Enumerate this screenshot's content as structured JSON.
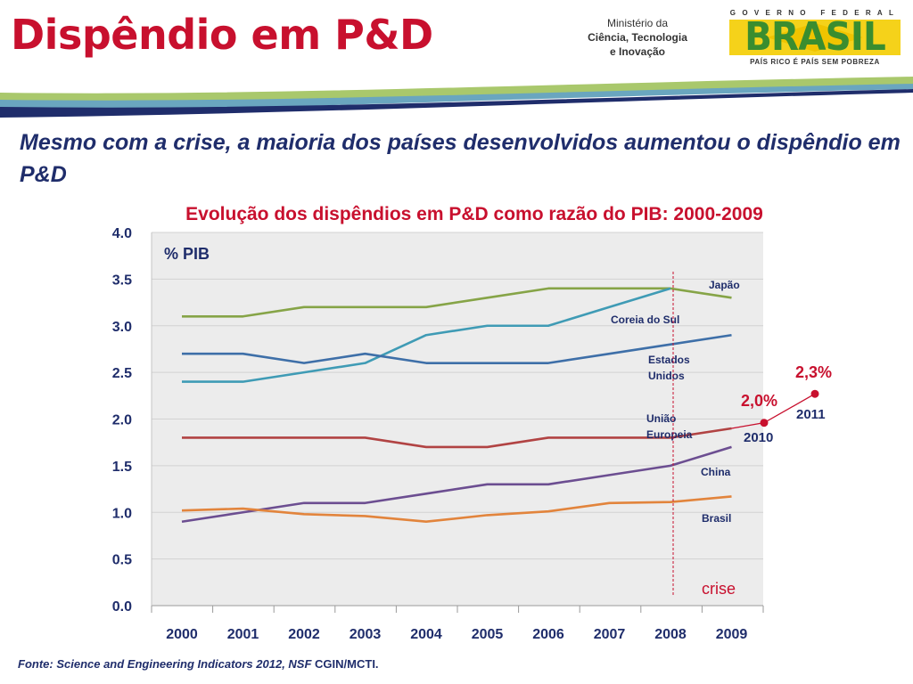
{
  "header": {
    "title": "Dispêndio em P&D",
    "ministry": [
      "Ministério da",
      "Ciência, Tecnologia",
      "e Inovação"
    ],
    "gov_top": "GOVERNO FEDERAL",
    "gov_word": "BRASIL",
    "gov_bottom": "PAÍS RICO É PAÍS SEM POBREZA"
  },
  "subtitle": "Mesmo com a crise, a maioria dos países desenvolvidos aumentou o dispêndio em P&D",
  "chart_data": {
    "type": "line",
    "title": "Evolução dos dispêndios em P&D como razão do PIB: 2000-2009",
    "ylabel": "% PIB",
    "xlabel": "",
    "x": [
      "2000",
      "2001",
      "2002",
      "2003",
      "2004",
      "2005",
      "2006",
      "2007",
      "2008",
      "2009"
    ],
    "ylim": [
      0,
      4
    ],
    "yticks": [
      "0.0",
      "0.5",
      "1.0",
      "1.5",
      "2.0",
      "2.5",
      "3.0",
      "3.5",
      "4.0"
    ],
    "grid": true,
    "series": [
      {
        "name": "Japão",
        "color": "#86a447",
        "values": [
          3.1,
          3.1,
          3.2,
          3.2,
          3.2,
          3.3,
          3.4,
          3.4,
          3.4,
          3.3
        ]
      },
      {
        "name": "Coreia do Sul",
        "color": "#3f9bb5",
        "values": [
          2.4,
          2.4,
          2.5,
          2.6,
          2.9,
          3.0,
          3.0,
          3.2,
          3.4,
          null
        ]
      },
      {
        "name": "Estados Unidos",
        "color": "#3e6fa8",
        "values": [
          2.7,
          2.7,
          2.6,
          2.7,
          2.6,
          2.6,
          2.6,
          2.7,
          2.8,
          2.9
        ]
      },
      {
        "name": "União Europeia",
        "color": "#b14343",
        "values": [
          1.8,
          1.8,
          1.8,
          1.8,
          1.7,
          1.7,
          1.8,
          1.8,
          1.8,
          1.9
        ]
      },
      {
        "name": "China",
        "color": "#6c4e91",
        "values": [
          0.9,
          1.0,
          1.1,
          1.1,
          1.2,
          1.3,
          1.3,
          1.4,
          1.5,
          1.7
        ]
      },
      {
        "name": "Brasil",
        "color": "#e2843c",
        "values": [
          1.02,
          1.04,
          0.98,
          0.96,
          0.9,
          0.97,
          1.01,
          1.1,
          1.11,
          1.17
        ]
      }
    ],
    "projection": {
      "color": "#c8102e",
      "points": [
        {
          "x": "2010",
          "y": 1.96,
          "label": "2,0%"
        },
        {
          "x": "2011",
          "y": 2.27,
          "label": "2,3%"
        }
      ]
    },
    "crisis": {
      "x": "2008",
      "label": "crise"
    }
  },
  "source": {
    "italic": "Fonte: Science and Engineering Indicators 2012, NSF",
    "plain": "CGIN/MCTI."
  },
  "colors": {
    "accent": "#c8102e",
    "navy": "#1f2d6b",
    "plot_bg": "#ececec"
  }
}
